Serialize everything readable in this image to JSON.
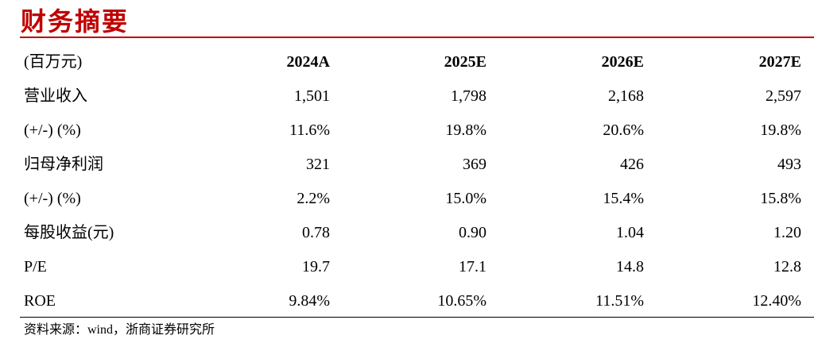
{
  "header": {
    "title": "财务摘要"
  },
  "table": {
    "columns": [
      "(百万元)",
      "2024A",
      "2025E",
      "2026E",
      "2027E"
    ],
    "rows": [
      [
        "营业收入",
        "1,501",
        "1,798",
        "2,168",
        "2,597"
      ],
      [
        "(+/-) (%)",
        "11.6%",
        "19.8%",
        "20.6%",
        "19.8%"
      ],
      [
        "归母净利润",
        "321",
        "369",
        "426",
        "493"
      ],
      [
        "(+/-) (%)",
        "2.2%",
        "15.0%",
        "15.4%",
        "15.8%"
      ],
      [
        "每股收益(元)",
        "0.78",
        "0.90",
        "1.04",
        "1.20"
      ],
      [
        "P/E",
        "19.7",
        "17.1",
        "14.8",
        "12.8"
      ],
      [
        "ROE",
        "9.84%",
        "10.65%",
        "11.51%",
        "12.40%"
      ]
    ]
  },
  "source": "资料来源：wind，浙商证券研究所"
}
